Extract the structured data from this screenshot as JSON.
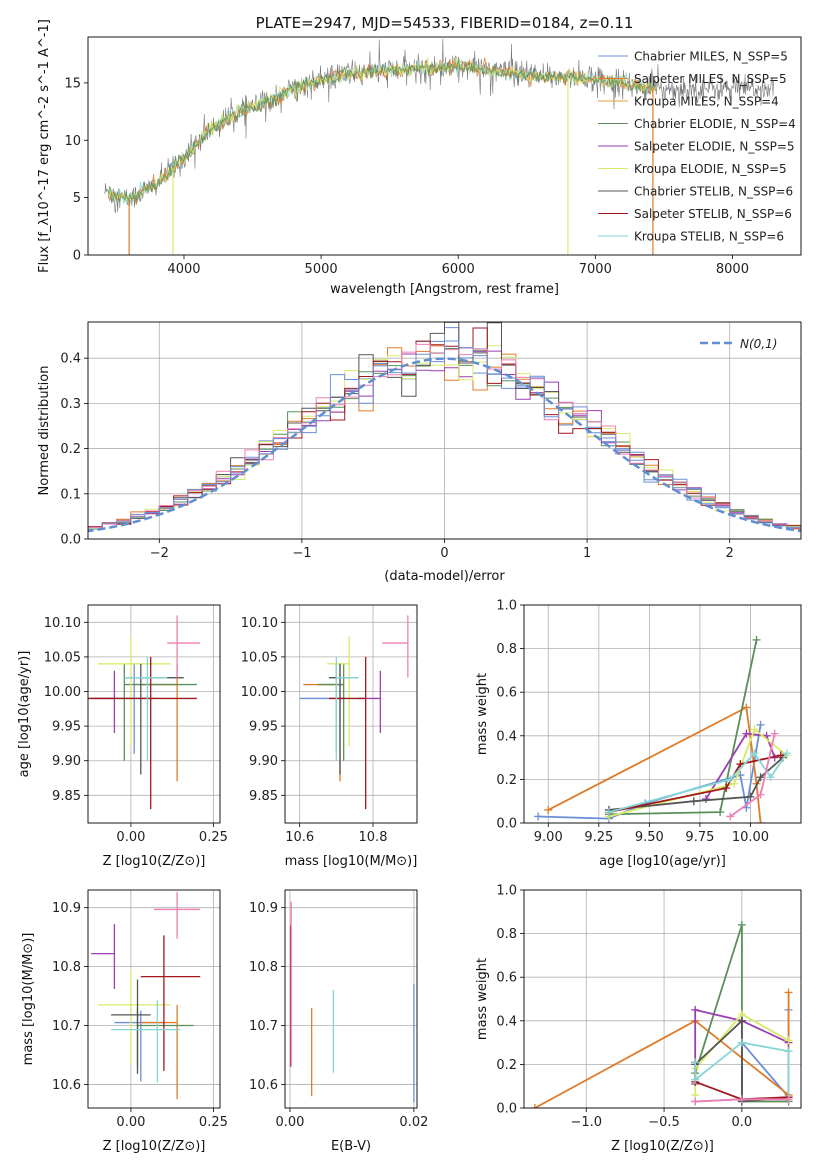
{
  "colors": [
    "#6b8fd6",
    "#e07b28",
    "#5a8f5a",
    "#9b3fb0",
    "#d8ea6a",
    "#555555",
    "#a0181c",
    "#86d6d6",
    "#ef7fb4"
  ],
  "chart_data": [
    {
      "id": "spectrum",
      "type": "line",
      "title": "PLATE=2947, MJD=54533, FIBERID=0184, z=0.11",
      "xlabel": "wavelength [Angstrom, rest frame]",
      "ylabel": "Flux [f_λ10^-17 erg cm^-2 s^-1 A^-1]",
      "xlim": [
        3300,
        8500
      ],
      "ylim": [
        0,
        19
      ],
      "xticks": [
        "4000",
        "5000",
        "6000",
        "7000",
        "8000"
      ],
      "xtick_values": [
        4000,
        5000,
        6000,
        7000,
        8000
      ],
      "yticks": [
        "0",
        "5",
        "10",
        "15"
      ],
      "ytick_values": [
        0,
        5,
        10,
        15
      ],
      "grid": false,
      "legend": "upper right",
      "series_names": [
        "Chabrier MILES, N_SSP=5",
        "Salpeter MILES, N_SSP=5",
        "Kroupa MILES, N_SSP=4",
        "Chabrier ELODIE, N_SSP=4",
        "Salpeter ELODIE, N_SSP=5",
        "Kroupa ELODIE, N_SSP=5",
        "Chabrier STELIB, N_SSP=6",
        "Salpeter STELIB, N_SSP=6",
        "Kroupa STELIB, N_SSP=6"
      ],
      "legend_colors": [
        "#6b8fd6",
        "#e07b28",
        "#e0a040",
        "#5a8f5a",
        "#9b3fb0",
        "#d8ea6a",
        "#555555",
        "#a0181c",
        "#86d6d6"
      ],
      "continuum": [
        [
          3450,
          5.5
        ],
        [
          3600,
          4.8
        ],
        [
          3800,
          6.2
        ],
        [
          4000,
          8.5
        ],
        [
          4200,
          11.0
        ],
        [
          4400,
          12.5
        ],
        [
          4600,
          13.3
        ],
        [
          4800,
          14.5
        ],
        [
          5000,
          15.2
        ],
        [
          5200,
          15.8
        ],
        [
          5400,
          16.0
        ],
        [
          5600,
          16.2
        ],
        [
          5800,
          16.3
        ],
        [
          6000,
          16.5
        ],
        [
          6200,
          16.2
        ],
        [
          6400,
          15.8
        ],
        [
          6600,
          15.5
        ],
        [
          6800,
          15.5
        ],
        [
          7000,
          15.3
        ],
        [
          7200,
          15.0
        ],
        [
          7400,
          14.5
        ]
      ],
      "data_extent": [
        3420,
        8300
      ]
    },
    {
      "id": "residuals",
      "type": "histogram",
      "xlabel": "(data-model)/error",
      "ylabel": "Normed distribution",
      "xlim": [
        -2.5,
        2.5
      ],
      "ylim": [
        0,
        0.48
      ],
      "xticks": [
        "−2",
        "−1",
        "0",
        "1",
        "2"
      ],
      "xtick_values": [
        -2,
        -1,
        0,
        1,
        2
      ],
      "yticks": [
        "0.0",
        "0.1",
        "0.2",
        "0.3",
        "0.4"
      ],
      "ytick_values": [
        0,
        0.1,
        0.2,
        0.3,
        0.4
      ],
      "grid": true,
      "legend": "upper right",
      "legend_label": "N(0,1)",
      "bin_width": 0.1
    },
    {
      "id": "age_vs_Z",
      "type": "errorbar",
      "xlabel": "Z [log10(Z/Z⊙)]",
      "ylabel": "age [log10(age/yr)]",
      "xlim": [
        -0.13,
        0.27
      ],
      "ylim": [
        9.81,
        10.125
      ],
      "xticks": [
        "0.00",
        "0.25"
      ],
      "xtick_values": [
        0,
        0.25
      ],
      "yticks": [
        "9.85",
        "9.90",
        "9.95",
        "10.00",
        "10.05",
        "10.10"
      ],
      "ytick_values": [
        9.85,
        9.9,
        9.95,
        10.0,
        10.05,
        10.1
      ],
      "grid": true,
      "points": [
        {
          "x": 0.01,
          "xerr": [
            0.12,
            0.07
          ],
          "y": 9.99,
          "yerr": [
            0.08,
            0.05
          ]
        },
        {
          "x": 0.14,
          "xerr": [
            0.11,
            0.0
          ],
          "y": 10.01,
          "yerr": [
            0.14,
            0.03
          ]
        },
        {
          "x": -0.02,
          "xerr": [
            0.0,
            0.22
          ],
          "y": 10.01,
          "yerr": [
            0.11,
            0.03
          ]
        },
        {
          "x": -0.05,
          "xerr": [
            0.07,
            0.0
          ],
          "y": 9.99,
          "yerr": [
            0.05,
            0.04
          ]
        },
        {
          "x": 0.0,
          "xerr": [
            0.1,
            0.12
          ],
          "y": 10.04,
          "yerr": [
            0.12,
            0.04
          ]
        },
        {
          "x": 0.03,
          "xerr": [
            0.05,
            0.13
          ],
          "y": 10.02,
          "yerr": [
            0.14,
            0.02
          ]
        },
        {
          "x": 0.06,
          "xerr": [
            0.22,
            0.14
          ],
          "y": 9.99,
          "yerr": [
            0.16,
            0.06
          ]
        },
        {
          "x": 0.05,
          "xerr": [
            0.07,
            0.06
          ],
          "y": 10.02,
          "yerr": [
            0.12,
            0.03
          ]
        },
        {
          "x": 0.14,
          "xerr": [
            0.03,
            0.07
          ],
          "y": 10.07,
          "yerr": [
            0.05,
            0.04
          ]
        }
      ]
    },
    {
      "id": "age_vs_mass",
      "type": "errorbar",
      "xlabel": "mass [log10(M/M⊙)]",
      "ylabel": "",
      "xlim": [
        10.56,
        10.92
      ],
      "ylim": [
        9.81,
        10.125
      ],
      "xticks": [
        "10.6",
        "10.8"
      ],
      "xtick_values": [
        10.6,
        10.8
      ],
      "yticks": [
        "9.85",
        "9.90",
        "9.95",
        "10.00",
        "10.05",
        "10.10"
      ],
      "ytick_values": [
        9.85,
        9.9,
        9.95,
        10.0,
        10.05,
        10.1
      ],
      "grid": true,
      "points": [
        {
          "x": 10.7,
          "xerr": [
            0.1,
            0.02
          ],
          "y": 9.99,
          "yerr": [
            0.08,
            0.05
          ]
        },
        {
          "x": 10.71,
          "xerr": [
            0.1,
            0.0
          ],
          "y": 10.01,
          "yerr": [
            0.14,
            0.03
          ]
        },
        {
          "x": 10.72,
          "xerr": [
            0.07,
            0.0
          ],
          "y": 10.01,
          "yerr": [
            0.11,
            0.03
          ]
        },
        {
          "x": 10.82,
          "xerr": [
            0.06,
            0.0
          ],
          "y": 9.99,
          "yerr": [
            0.05,
            0.04
          ]
        },
        {
          "x": 10.735,
          "xerr": [
            0.06,
            0.0
          ],
          "y": 10.04,
          "yerr": [
            0.12,
            0.04
          ]
        },
        {
          "x": 10.71,
          "xerr": [
            0.03,
            0.05
          ],
          "y": 10.02,
          "yerr": [
            0.14,
            0.02
          ]
        },
        {
          "x": 10.78,
          "xerr": [
            0.1,
            0.0
          ],
          "y": 9.99,
          "yerr": [
            0.16,
            0.06
          ]
        },
        {
          "x": 10.7,
          "xerr": [
            0.0,
            0.06
          ],
          "y": 10.02,
          "yerr": [
            0.12,
            0.03
          ]
        },
        {
          "x": 10.895,
          "xerr": [
            0.07,
            0.0
          ],
          "y": 10.07,
          "yerr": [
            0.05,
            0.04
          ]
        }
      ]
    },
    {
      "id": "mass_weight_vs_age",
      "type": "line",
      "xlabel": "age [log10(age/yr)]",
      "ylabel": "mass weight",
      "xlim": [
        8.88,
        10.25
      ],
      "ylim": [
        0,
        1.0
      ],
      "xticks": [
        "9.00",
        "9.25",
        "9.50",
        "9.75",
        "10.00"
      ],
      "xtick_values": [
        9.0,
        9.25,
        9.5,
        9.75,
        10.0
      ],
      "yticks": [
        "0.0",
        "0.2",
        "0.4",
        "0.6",
        "0.8",
        "1.0"
      ],
      "ytick_values": [
        0,
        0.2,
        0.4,
        0.6,
        0.8,
        1.0
      ],
      "grid": true,
      "series": [
        {
          "x": [
            8.95,
            9.3,
            9.48,
            9.95,
            9.98,
            10.05
          ],
          "y": [
            0.03,
            0.02,
            0.09,
            0.22,
            0.07,
            0.45
          ]
        },
        {
          "x": [
            9.0,
            9.98,
            10.03,
            10.05
          ],
          "y": [
            0.06,
            0.53,
            0.18,
            0.0
          ]
        },
        {
          "x": [
            9.3,
            9.85,
            10.03
          ],
          "y": [
            0.04,
            0.05,
            0.84
          ]
        },
        {
          "x": [
            9.78,
            9.98,
            10.08,
            10.12
          ],
          "y": [
            0.11,
            0.41,
            0.4,
            0.3
          ]
        },
        {
          "x": [
            9.3,
            9.92,
            10.02,
            10.18
          ],
          "y": [
            0.03,
            0.18,
            0.43,
            0.31
          ]
        },
        {
          "x": [
            9.3,
            9.72,
            10.0,
            10.05,
            10.16
          ],
          "y": [
            0.06,
            0.1,
            0.12,
            0.21,
            0.3
          ]
        },
        {
          "x": [
            9.3,
            9.88,
            9.95,
            10.15
          ],
          "y": [
            0.05,
            0.16,
            0.27,
            0.31
          ]
        },
        {
          "x": [
            9.3,
            9.9,
            10.02,
            10.1,
            10.18
          ],
          "y": [
            0.05,
            0.2,
            0.32,
            0.21,
            0.32
          ]
        },
        {
          "x": [
            9.9,
            10.05,
            10.12
          ],
          "y": [
            0.03,
            0.13,
            0.41
          ]
        }
      ]
    },
    {
      "id": "mass_vs_Z",
      "type": "errorbar",
      "xlabel": "Z [log10(Z/Z⊙)]",
      "ylabel": "mass [log10(M/M⊙)]",
      "xlim": [
        -0.13,
        0.27
      ],
      "ylim": [
        10.56,
        10.93
      ],
      "xticks": [
        "0.00",
        "0.25"
      ],
      "xtick_values": [
        0,
        0.25
      ],
      "yticks": [
        "10.6",
        "10.7",
        "10.8",
        "10.9"
      ],
      "ytick_values": [
        10.6,
        10.7,
        10.8,
        10.9
      ],
      "grid": true,
      "points": [
        {
          "x": 0.03,
          "xerr": [
            0.08,
            0.07
          ],
          "y": 10.705,
          "yerr": [
            0.1,
            0.02
          ]
        },
        {
          "x": 0.14,
          "xerr": [
            0.11,
            0.0
          ],
          "y": 10.705,
          "yerr": [
            0.13,
            0.03
          ]
        },
        {
          "x": 0.02,
          "xerr": [
            0.0,
            0.17
          ],
          "y": 10.7,
          "yerr": [
            0.07,
            0.03
          ]
        },
        {
          "x": -0.05,
          "xerr": [
            0.07,
            0.0
          ],
          "y": 10.822,
          "yerr": [
            0.06,
            0.05
          ]
        },
        {
          "x": 0.0,
          "xerr": [
            0.1,
            0.12
          ],
          "y": 10.735,
          "yerr": [
            0.1,
            0.06
          ]
        },
        {
          "x": 0.02,
          "xerr": [
            0.08,
            0.04
          ],
          "y": 10.718,
          "yerr": [
            0.1,
            0.06
          ]
        },
        {
          "x": 0.1,
          "xerr": [
            0.07,
            0.11
          ],
          "y": 10.783,
          "yerr": [
            0.16,
            0.07
          ]
        },
        {
          "x": 0.08,
          "xerr": [
            0.14,
            0.07
          ],
          "y": 10.693,
          "yerr": [
            0.09,
            0.05
          ]
        },
        {
          "x": 0.14,
          "xerr": [
            0.07,
            0.07
          ],
          "y": 10.897,
          "yerr": [
            0.05,
            0.03
          ]
        }
      ]
    },
    {
      "id": "mass_vs_ebv",
      "type": "errorbar",
      "xlabel": "E(B-V)",
      "ylabel": "",
      "xlim": [
        -0.0008,
        0.0205
      ],
      "ylim": [
        10.56,
        10.93
      ],
      "xticks": [
        "0.00",
        "0.02"
      ],
      "xtick_values": [
        0,
        0.02
      ],
      "yticks": [
        "10.6",
        "10.7",
        "10.8",
        "10.9"
      ],
      "ytick_values": [
        10.6,
        10.7,
        10.8,
        10.9
      ],
      "grid": true,
      "points": [
        {
          "x": 0.0001,
          "y": 10.8,
          "yerr": [
            0.17,
            0.07
          ]
        },
        {
          "x": 0.0002,
          "y": 10.78,
          "yerr": [
            0.15,
            0.13
          ]
        },
        {
          "x": 0.0035,
          "y": 10.66,
          "yerr": [
            0.08,
            0.07
          ]
        },
        {
          "x": 0.007,
          "y": 10.68,
          "yerr": [
            0.06,
            0.08
          ]
        },
        {
          "x": 0.02,
          "y": 10.67,
          "yerr": [
            0.1,
            0.1
          ]
        }
      ]
    },
    {
      "id": "mass_weight_vs_Z",
      "type": "line",
      "xlabel": "Z [log10(Z/Z⊙)]",
      "ylabel": "mass weight",
      "xlim": [
        -1.4,
        0.38
      ],
      "ylim": [
        0,
        1.0
      ],
      "xticks": [
        "−1.0",
        "−0.5",
        "0.0"
      ],
      "xtick_values": [
        -1.0,
        -0.5,
        0.0
      ],
      "yticks": [
        "0.0",
        "0.2",
        "0.4",
        "0.6",
        "0.8",
        "1.0"
      ],
      "ytick_values": [
        0,
        0.2,
        0.4,
        0.6,
        0.8,
        1.0
      ],
      "grid": true,
      "series": [
        {
          "x": [
            -0.3,
            0.0,
            0.0,
            0.3,
            0.3
          ],
          "y": [
            0.03,
            0.04,
            0.3,
            0.05,
            0.45
          ]
        },
        {
          "x": [
            -1.33,
            -0.3,
            0.3,
            0.3
          ],
          "y": [
            0.0,
            0.4,
            0.06,
            0.53
          ]
        },
        {
          "x": [
            -0.3,
            0.0,
            0.0,
            0.3
          ],
          "y": [
            0.16,
            0.84,
            0.03,
            0.03
          ]
        },
        {
          "x": [
            -0.3,
            -0.3,
            0.0,
            0.3
          ],
          "y": [
            0.11,
            0.45,
            0.4,
            0.3
          ]
        },
        {
          "x": [
            -0.3,
            -0.3,
            0.0,
            0.3
          ],
          "y": [
            0.06,
            0.18,
            0.43,
            0.31
          ]
        },
        {
          "x": [
            -0.3,
            0.0,
            0.0,
            0.3
          ],
          "y": [
            0.2,
            0.4,
            0.03,
            0.05
          ]
        },
        {
          "x": [
            -0.3,
            -0.3,
            0.0,
            0.3
          ],
          "y": [
            0.21,
            0.12,
            0.04,
            0.05
          ]
        },
        {
          "x": [
            -0.3,
            -0.3,
            0.0,
            0.3,
            0.3
          ],
          "y": [
            0.21,
            0.13,
            0.3,
            0.26,
            0.04
          ]
        },
        {
          "x": [
            -0.3,
            0.0,
            0.3
          ],
          "y": [
            0.03,
            0.04,
            0.04
          ]
        }
      ]
    }
  ]
}
